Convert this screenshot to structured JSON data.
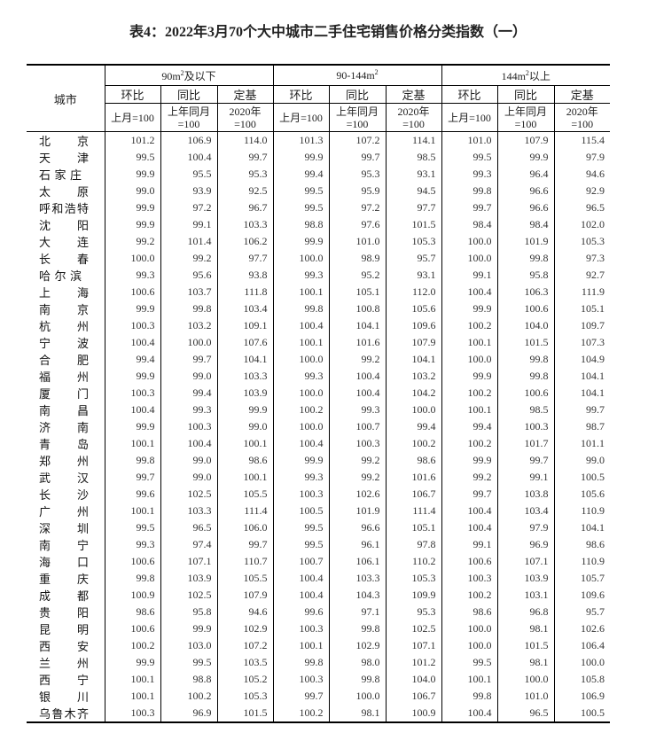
{
  "title": "表4：2022年3月70个大中城市二手住宅销售价格分类指数（一）",
  "header": {
    "city": "城市",
    "groups": [
      {
        "pre": "90m",
        "sup": "2",
        "post": "及以下"
      },
      {
        "pre": "90-144m",
        "sup": "2",
        "post": ""
      },
      {
        "pre": "144m",
        "sup": "2",
        "post": "以上"
      }
    ],
    "sub": [
      "环比",
      "同比",
      "定基"
    ],
    "base": [
      [
        "上月=100"
      ],
      [
        "上年同月",
        "=100"
      ],
      [
        "2020年",
        "=100"
      ]
    ]
  },
  "rows": [
    [
      "北京",
      "101.2",
      "106.9",
      "114.0",
      "101.3",
      "107.2",
      "114.1",
      "101.0",
      "107.9",
      "115.4"
    ],
    [
      "天津",
      "99.5",
      "100.4",
      "99.7",
      "99.9",
      "99.7",
      "98.5",
      "99.5",
      "99.9",
      "97.9"
    ],
    [
      "石家庄",
      "99.9",
      "95.5",
      "95.3",
      "99.4",
      "95.3",
      "93.1",
      "99.3",
      "96.4",
      "94.6"
    ],
    [
      "太原",
      "99.0",
      "93.9",
      "92.5",
      "99.5",
      "95.9",
      "94.5",
      "99.8",
      "96.6",
      "92.9"
    ],
    [
      "呼和浩特",
      "99.9",
      "97.2",
      "96.7",
      "99.5",
      "97.2",
      "97.7",
      "99.7",
      "96.6",
      "96.5"
    ],
    [
      "沈阳",
      "99.9",
      "99.1",
      "103.3",
      "98.8",
      "97.6",
      "101.5",
      "98.4",
      "98.4",
      "102.0"
    ],
    [
      "大连",
      "99.2",
      "101.4",
      "106.2",
      "99.9",
      "101.0",
      "105.3",
      "100.0",
      "101.9",
      "105.3"
    ],
    [
      "长春",
      "100.0",
      "99.2",
      "97.7",
      "100.0",
      "98.9",
      "95.7",
      "100.0",
      "99.8",
      "97.3"
    ],
    [
      "哈尔滨",
      "99.3",
      "95.6",
      "93.8",
      "99.3",
      "95.2",
      "93.1",
      "99.1",
      "95.8",
      "92.7"
    ],
    [
      "上海",
      "100.6",
      "103.7",
      "111.8",
      "100.1",
      "105.1",
      "112.0",
      "100.4",
      "106.3",
      "111.9"
    ],
    [
      "南京",
      "99.9",
      "99.8",
      "103.4",
      "99.8",
      "100.8",
      "105.6",
      "99.9",
      "100.6",
      "105.1"
    ],
    [
      "杭州",
      "100.3",
      "103.2",
      "109.1",
      "100.4",
      "104.1",
      "109.6",
      "100.2",
      "104.0",
      "109.7"
    ],
    [
      "宁波",
      "100.4",
      "100.0",
      "107.6",
      "100.1",
      "101.6",
      "107.9",
      "100.1",
      "101.5",
      "107.3"
    ],
    [
      "合肥",
      "99.4",
      "99.7",
      "104.1",
      "100.0",
      "99.2",
      "104.1",
      "100.0",
      "99.8",
      "104.9"
    ],
    [
      "福州",
      "99.9",
      "99.0",
      "103.3",
      "99.3",
      "100.4",
      "103.2",
      "99.9",
      "99.8",
      "104.1"
    ],
    [
      "厦门",
      "100.3",
      "99.4",
      "103.9",
      "100.0",
      "100.4",
      "104.2",
      "100.2",
      "100.6",
      "104.1"
    ],
    [
      "南昌",
      "100.4",
      "99.3",
      "99.9",
      "100.2",
      "99.3",
      "100.0",
      "100.1",
      "98.5",
      "99.7"
    ],
    [
      "济南",
      "99.9",
      "100.3",
      "99.0",
      "100.0",
      "100.7",
      "99.4",
      "99.4",
      "100.3",
      "98.7"
    ],
    [
      "青岛",
      "100.1",
      "100.4",
      "100.1",
      "100.4",
      "100.3",
      "100.2",
      "100.2",
      "101.7",
      "101.1"
    ],
    [
      "郑州",
      "99.8",
      "99.0",
      "98.6",
      "99.9",
      "99.2",
      "98.6",
      "99.9",
      "99.7",
      "99.0"
    ],
    [
      "武汉",
      "99.7",
      "99.0",
      "100.1",
      "99.3",
      "99.2",
      "101.6",
      "99.2",
      "99.1",
      "100.5"
    ],
    [
      "长沙",
      "99.6",
      "102.5",
      "105.5",
      "100.3",
      "102.6",
      "106.7",
      "99.7",
      "103.8",
      "105.6"
    ],
    [
      "广州",
      "100.1",
      "103.3",
      "111.4",
      "100.5",
      "101.9",
      "111.4",
      "100.4",
      "103.4",
      "110.9"
    ],
    [
      "深圳",
      "99.5",
      "96.5",
      "106.0",
      "99.5",
      "96.6",
      "105.1",
      "100.4",
      "97.9",
      "104.1"
    ],
    [
      "南宁",
      "99.3",
      "97.4",
      "99.7",
      "99.5",
      "96.1",
      "97.8",
      "99.1",
      "96.9",
      "98.6"
    ],
    [
      "海口",
      "100.6",
      "107.1",
      "110.7",
      "100.7",
      "106.1",
      "110.2",
      "100.6",
      "107.1",
      "110.9"
    ],
    [
      "重庆",
      "99.8",
      "103.9",
      "105.5",
      "100.4",
      "103.3",
      "105.3",
      "100.3",
      "103.9",
      "105.7"
    ],
    [
      "成都",
      "100.9",
      "102.5",
      "107.9",
      "100.4",
      "104.3",
      "109.9",
      "100.2",
      "103.1",
      "109.6"
    ],
    [
      "贵阳",
      "98.6",
      "95.8",
      "94.6",
      "99.6",
      "97.1",
      "95.3",
      "98.6",
      "96.8",
      "95.7"
    ],
    [
      "昆明",
      "100.6",
      "99.9",
      "102.9",
      "100.3",
      "99.8",
      "102.5",
      "100.0",
      "98.1",
      "102.6"
    ],
    [
      "西安",
      "100.2",
      "103.0",
      "107.2",
      "100.1",
      "102.9",
      "107.1",
      "100.0",
      "101.5",
      "106.4"
    ],
    [
      "兰州",
      "99.9",
      "99.5",
      "103.5",
      "99.8",
      "98.0",
      "101.2",
      "99.5",
      "98.1",
      "100.0"
    ],
    [
      "西宁",
      "100.1",
      "98.8",
      "105.2",
      "100.3",
      "99.8",
      "104.0",
      "100.1",
      "100.0",
      "105.8"
    ],
    [
      "银川",
      "100.1",
      "100.2",
      "105.3",
      "99.7",
      "100.0",
      "106.7",
      "99.8",
      "101.0",
      "106.9"
    ],
    [
      "乌鲁木齐",
      "100.3",
      "96.9",
      "101.5",
      "100.2",
      "98.1",
      "100.9",
      "100.4",
      "96.5",
      "100.5"
    ]
  ]
}
